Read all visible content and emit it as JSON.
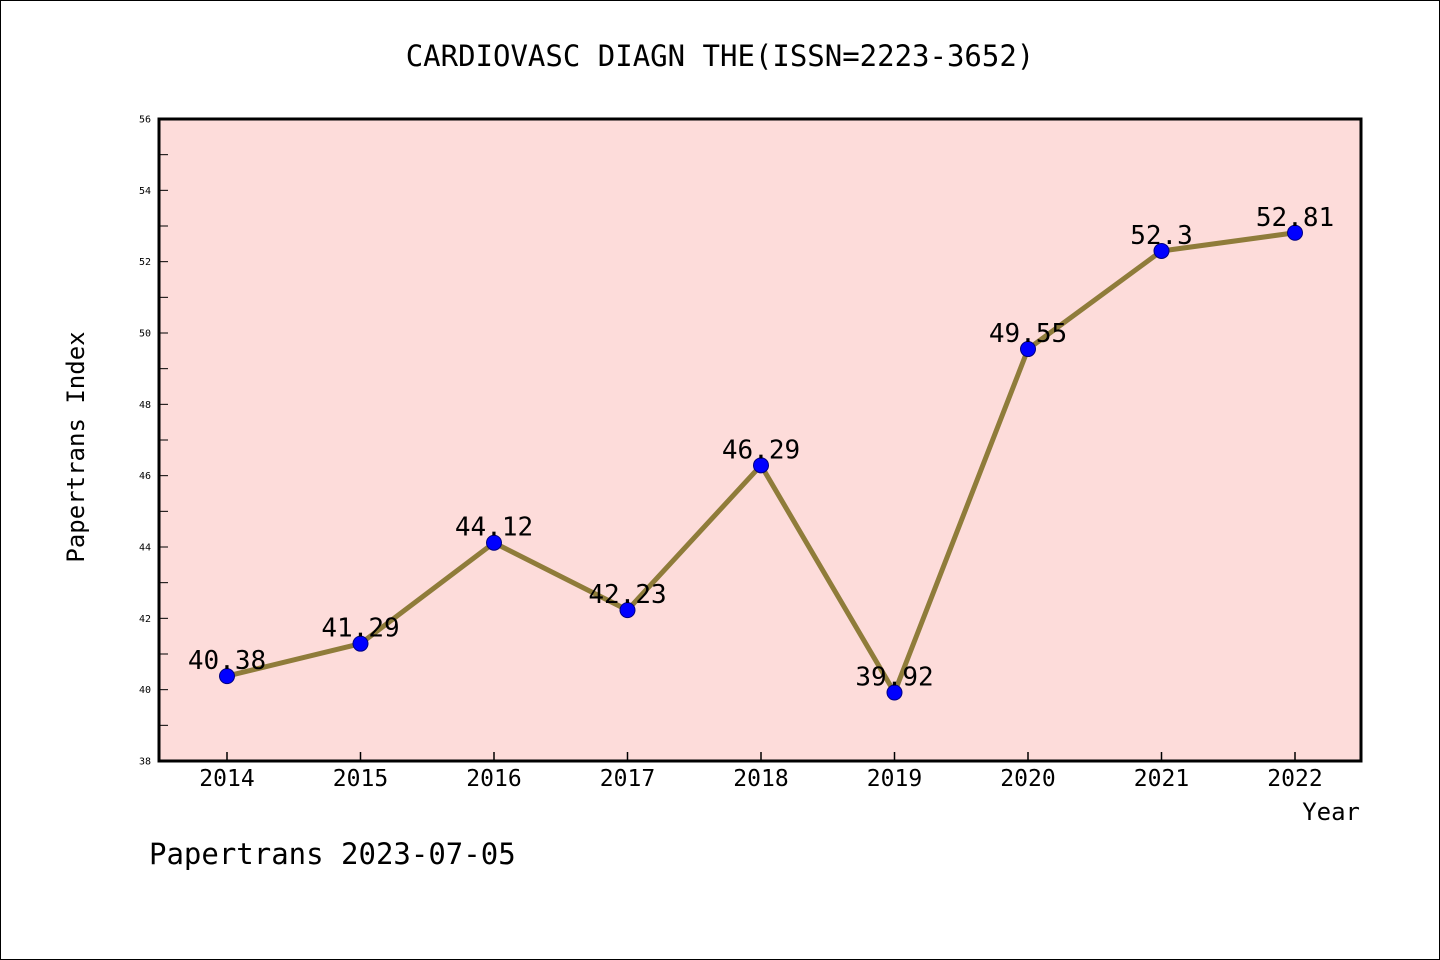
{
  "chart_data": {
    "type": "line",
    "title": "CARDIOVASC DIAGN THE(ISSN=2223-3652)",
    "xlabel": "Year",
    "ylabel": "Papertrans Index",
    "categories": [
      "2014",
      "2015",
      "2016",
      "2017",
      "2018",
      "2019",
      "2020",
      "2021",
      "2022"
    ],
    "series": [
      {
        "values": [
          40.38,
          41.29,
          44.12,
          42.23,
          46.29,
          39.92,
          49.55,
          52.3,
          52.81
        ],
        "labels": [
          "40.38",
          "41.29",
          "44.12",
          "42.23",
          "46.29",
          "39.92",
          "49.55",
          "52.3",
          "52.81"
        ]
      }
    ],
    "ylim": [
      38,
      56
    ],
    "yticks": [
      "38",
      "40",
      "42",
      "44",
      "46",
      "48",
      "50",
      "52",
      "54",
      "56"
    ],
    "grid": false,
    "legend": "none",
    "footer": "Papertrans 2023-07-05",
    "colors": {
      "plot_background": "#fddcda",
      "line": "#8f7c3a",
      "marker": "#0000ff",
      "marker_edge": "#000080",
      "axes": "#000000",
      "text": "#000000"
    }
  }
}
